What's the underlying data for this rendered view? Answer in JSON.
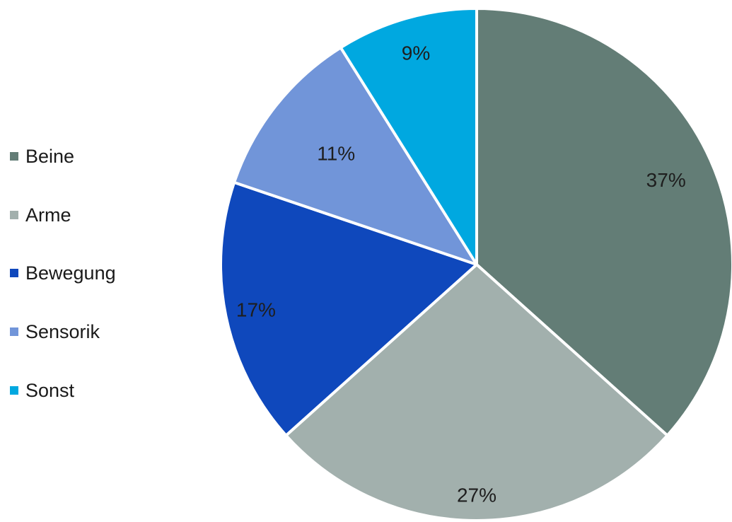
{
  "chart_data": {
    "type": "pie",
    "title": "",
    "unit": "%",
    "slices": [
      {
        "name": "Beine",
        "value": 37,
        "label": "37%",
        "color": "#637d76"
      },
      {
        "name": "Arme",
        "value": 27,
        "label": "27%",
        "color": "#a2b0ad"
      },
      {
        "name": "Bewegung",
        "value": 17,
        "label": "17%",
        "color": "#0f48bc"
      },
      {
        "name": "Sensorik",
        "value": 11,
        "label": "11%",
        "color": "#7195d9"
      },
      {
        "name": "Sonst",
        "value": 9,
        "label": "9%",
        "color": "#00a8e0"
      }
    ],
    "start": "12 o'clock",
    "direction": "clockwise",
    "legend": {
      "position": "left"
    }
  }
}
